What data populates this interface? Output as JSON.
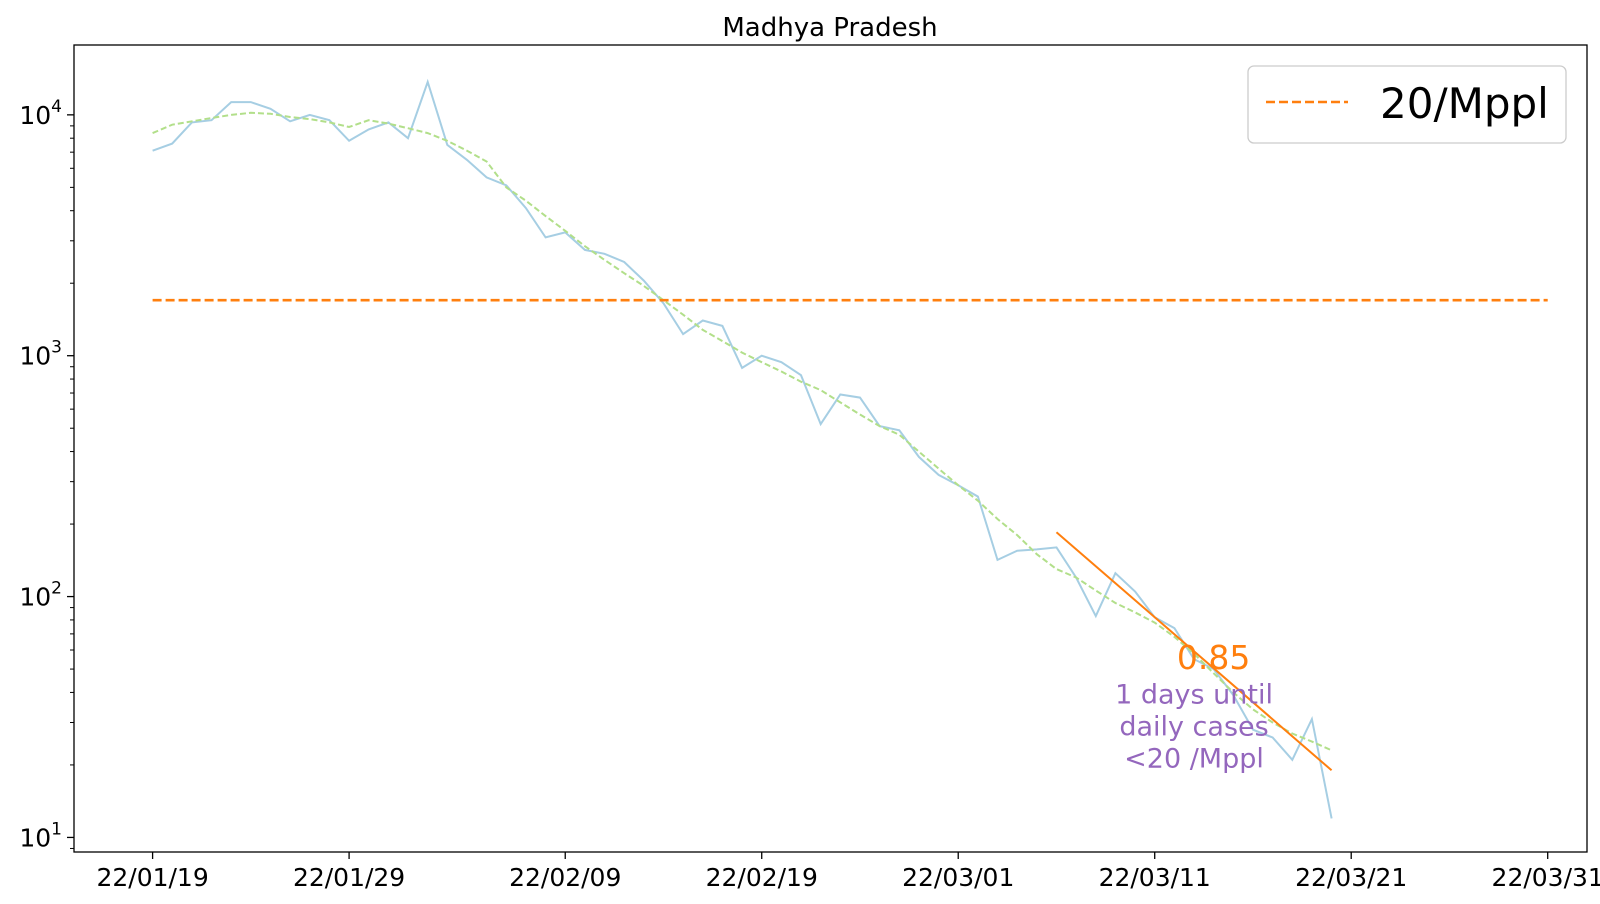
{
  "chart_data": {
    "type": "line",
    "title": "Madhya Pradesh",
    "xlabel": "",
    "ylabel": "",
    "yscale": "log",
    "ylim": [
      8.7,
      19500
    ],
    "xlim": [
      "2022-01-15",
      "2022-04-02"
    ],
    "x_tick_labels": [
      {
        "date": "2022-01-19",
        "label": "22/01/19"
      },
      {
        "date": "2022-01-29",
        "label": "22/01/29"
      },
      {
        "date": "2022-02-09",
        "label": "22/02/09"
      },
      {
        "date": "2022-02-19",
        "label": "22/02/19"
      },
      {
        "date": "2022-03-01",
        "label": "22/03/01"
      },
      {
        "date": "2022-03-11",
        "label": "22/03/11"
      },
      {
        "date": "2022-03-21",
        "label": "22/03/21"
      },
      {
        "date": "2022-03-31",
        "label": "22/03/31"
      }
    ],
    "y_tick_labels": [
      {
        "value": 10,
        "base": "10",
        "exp": "1"
      },
      {
        "value": 100,
        "base": "10",
        "exp": "2"
      },
      {
        "value": 1000,
        "base": "10",
        "exp": "3"
      },
      {
        "value": 10000,
        "base": "10",
        "exp": "4"
      }
    ],
    "grid": false,
    "legend": {
      "placement": "top-right",
      "entries": [
        {
          "label": "20/Mppl",
          "color": "#ff7f0e",
          "style": "dashed"
        }
      ]
    },
    "colors": {
      "daily": "#a6cee3",
      "smoothed": "#b2df8a",
      "threshold": "#ff7f0e",
      "trend": "#ff7f0e",
      "annotation": "#9467bd"
    },
    "series": [
      {
        "id": "daily",
        "x": [
          "2022-01-19",
          "2022-01-20",
          "2022-01-21",
          "2022-01-22",
          "2022-01-23",
          "2022-01-24",
          "2022-01-25",
          "2022-01-26",
          "2022-01-27",
          "2022-01-28",
          "2022-01-29",
          "2022-01-30",
          "2022-01-31",
          "2022-02-01",
          "2022-02-02",
          "2022-02-03",
          "2022-02-04",
          "2022-02-05",
          "2022-02-06",
          "2022-02-07",
          "2022-02-08",
          "2022-02-09",
          "2022-02-10",
          "2022-02-11",
          "2022-02-12",
          "2022-02-13",
          "2022-02-14",
          "2022-02-15",
          "2022-02-16",
          "2022-02-17",
          "2022-02-18",
          "2022-02-19",
          "2022-02-20",
          "2022-02-21",
          "2022-02-22",
          "2022-02-23",
          "2022-02-24",
          "2022-02-25",
          "2022-02-26",
          "2022-02-27",
          "2022-02-28",
          "2022-03-01",
          "2022-03-02",
          "2022-03-03",
          "2022-03-04",
          "2022-03-05",
          "2022-03-06",
          "2022-03-07",
          "2022-03-08",
          "2022-03-09",
          "2022-03-10",
          "2022-03-11",
          "2022-03-12",
          "2022-03-13",
          "2022-03-14",
          "2022-03-15",
          "2022-03-16",
          "2022-03-17",
          "2022-03-18",
          "2022-03-19",
          "2022-03-20"
        ],
        "values": [
          7100,
          7600,
          9300,
          9500,
          11300,
          11300,
          10600,
          9400,
          10000,
          9500,
          7800,
          8700,
          9300,
          8000,
          13700,
          7500,
          6500,
          5500,
          5100,
          4100,
          3100,
          3250,
          2750,
          2650,
          2450,
          2050,
          1650,
          1230,
          1400,
          1330,
          890,
          1000,
          940,
          830,
          520,
          690,
          670,
          510,
          490,
          380,
          320,
          290,
          260,
          142,
          155,
          157,
          160,
          120,
          83,
          125,
          105,
          82,
          74,
          55,
          50,
          39,
          28,
          26,
          21,
          31,
          12
        ]
      },
      {
        "id": "smoothed",
        "x": [
          "2022-01-19",
          "2022-01-20",
          "2022-01-21",
          "2022-01-22",
          "2022-01-23",
          "2022-01-24",
          "2022-01-25",
          "2022-01-26",
          "2022-01-27",
          "2022-01-28",
          "2022-01-29",
          "2022-01-30",
          "2022-01-31",
          "2022-02-01",
          "2022-02-02",
          "2022-02-03",
          "2022-02-04",
          "2022-02-05",
          "2022-02-06",
          "2022-02-07",
          "2022-02-08",
          "2022-02-09",
          "2022-02-10",
          "2022-02-11",
          "2022-02-12",
          "2022-02-13",
          "2022-02-14",
          "2022-02-15",
          "2022-02-16",
          "2022-02-17",
          "2022-02-18",
          "2022-02-19",
          "2022-02-20",
          "2022-02-21",
          "2022-02-22",
          "2022-02-23",
          "2022-02-24",
          "2022-02-25",
          "2022-02-26",
          "2022-02-27",
          "2022-02-28",
          "2022-03-01",
          "2022-03-02",
          "2022-03-03",
          "2022-03-04",
          "2022-03-05",
          "2022-03-06",
          "2022-03-07",
          "2022-03-08",
          "2022-03-09",
          "2022-03-10",
          "2022-03-11",
          "2022-03-12",
          "2022-03-13",
          "2022-03-14",
          "2022-03-15",
          "2022-03-16",
          "2022-03-17",
          "2022-03-18",
          "2022-03-19",
          "2022-03-20"
        ],
        "values": [
          8400,
          9100,
          9400,
          9700,
          10000,
          10200,
          10100,
          9800,
          9600,
          9300,
          8900,
          9500,
          9200,
          8800,
          8400,
          7800,
          7100,
          6400,
          5000,
          4400,
          3800,
          3300,
          2850,
          2500,
          2200,
          1950,
          1700,
          1480,
          1280,
          1150,
          1030,
          940,
          860,
          780,
          720,
          640,
          570,
          510,
          470,
          400,
          340,
          290,
          250,
          210,
          180,
          150,
          130,
          120,
          106,
          94,
          86,
          78,
          68,
          58,
          48,
          40,
          34,
          30,
          27,
          25,
          23
        ]
      }
    ],
    "threshold": {
      "label": "20/Mppl",
      "value": 1700,
      "x_start": "2022-01-19",
      "x_end": "2022-03-31"
    },
    "trend_line": {
      "x": [
        "2022-03-06",
        "2022-03-20"
      ],
      "values": [
        185,
        19
      ]
    },
    "annotations": {
      "ratio": {
        "text": "0.85",
        "x": "2022-03-14",
        "y": 50
      },
      "message": {
        "lines": [
          "1 days until",
          "daily cases",
          "<20 /Mppl"
        ],
        "x": "2022-03-13",
        "y": 36
      }
    }
  }
}
